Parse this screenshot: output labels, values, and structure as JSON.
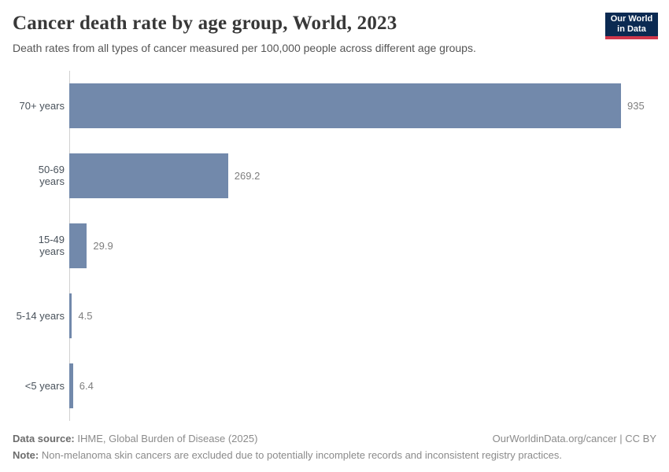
{
  "header": {
    "title": "Cancer death rate by age group, World, 2023",
    "subtitle": "Death rates from all types of cancer measured per 100,000 people across different age groups.",
    "logo": {
      "line1": "Our World",
      "line2": "in Data"
    }
  },
  "chart_data": {
    "type": "bar",
    "orientation": "horizontal",
    "title": "Cancer death rate by age group, World, 2023",
    "categories": [
      "70+ years",
      "50-69 years",
      "15-49 years",
      "5-14 years",
      "<5 years"
    ],
    "values": [
      935,
      269.2,
      29.9,
      4.5,
      6.4
    ],
    "value_labels": [
      "935",
      "269.2",
      "29.9",
      "4.5",
      "6.4"
    ],
    "xlabel": "",
    "ylabel": "",
    "xlim": [
      0,
      935
    ],
    "grid": false,
    "legend": "none",
    "unit": "deaths per 100,000 people"
  },
  "footer": {
    "data_source_label": "Data source:",
    "data_source_text": " IHME, Global Burden of Disease (2025)",
    "citation": "OurWorldinData.org/cancer | CC BY",
    "note_label": "Note:",
    "note_text": " Non-melanoma skin cancers are excluded due to potentially incomplete records and inconsistent registry practices."
  },
  "colors": {
    "bar": "#7289ab",
    "logo_bg": "#0b2a52",
    "logo_red": "#d0374b",
    "axis": "#d0d0d0"
  }
}
